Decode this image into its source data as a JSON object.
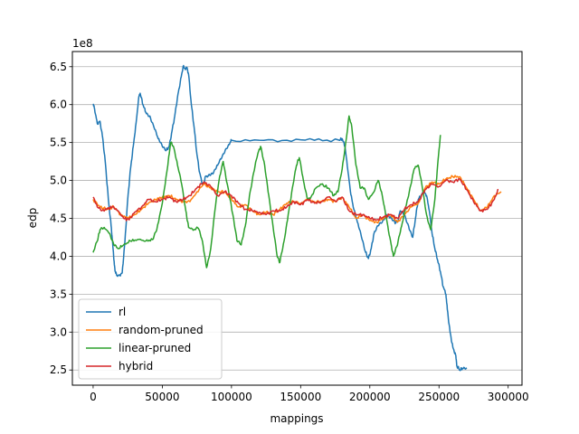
{
  "chart_data": {
    "type": "line",
    "title": "",
    "xlabel": "mappings",
    "ylabel": "edp",
    "y_scale_note": "1e8",
    "xlim": [
      -15000,
      310000
    ],
    "ylim": [
      2.3,
      6.7
    ],
    "x_ticks": [
      0,
      50000,
      100000,
      150000,
      200000,
      250000,
      300000
    ],
    "x_tick_labels": [
      "0",
      "50000",
      "100000",
      "150000",
      "200000",
      "250000",
      "300000"
    ],
    "y_ticks": [
      2.5,
      3.0,
      3.5,
      4.0,
      4.5,
      5.0,
      5.5,
      6.0,
      6.5
    ],
    "y_tick_labels": [
      "2.5",
      "3.0",
      "3.5",
      "4.0",
      "4.5",
      "5.0",
      "5.5",
      "6.0",
      "6.5"
    ],
    "grid": "horizontal",
    "legend_position": "lower-left",
    "series": [
      {
        "name": "rl",
        "color": "#1f77b4",
        "points": [
          [
            0,
            6.0
          ],
          [
            1000,
            5.95
          ],
          [
            3000,
            5.75
          ],
          [
            5000,
            5.78
          ],
          [
            7000,
            5.55
          ],
          [
            9000,
            5.2
          ],
          [
            11000,
            4.75
          ],
          [
            13000,
            4.4
          ],
          [
            14000,
            4.2
          ],
          [
            15000,
            3.95
          ],
          [
            16000,
            3.8
          ],
          [
            17000,
            3.75
          ],
          [
            19000,
            3.75
          ],
          [
            21000,
            3.78
          ],
          [
            23000,
            4.2
          ],
          [
            25000,
            4.75
          ],
          [
            27000,
            5.15
          ],
          [
            29000,
            5.45
          ],
          [
            31000,
            5.75
          ],
          [
            33000,
            6.1
          ],
          [
            34000,
            6.15
          ],
          [
            36000,
            6.0
          ],
          [
            38000,
            5.9
          ],
          [
            41000,
            5.85
          ],
          [
            44000,
            5.7
          ],
          [
            47000,
            5.55
          ],
          [
            50000,
            5.45
          ],
          [
            53000,
            5.4
          ],
          [
            55000,
            5.45
          ],
          [
            57000,
            5.65
          ],
          [
            59000,
            5.85
          ],
          [
            61000,
            6.1
          ],
          [
            63000,
            6.3
          ],
          [
            65000,
            6.5
          ],
          [
            67000,
            6.47
          ],
          [
            68000,
            6.48
          ],
          [
            69000,
            6.4
          ],
          [
            71000,
            6.0
          ],
          [
            73000,
            5.7
          ],
          [
            75000,
            5.35
          ],
          [
            77000,
            5.1
          ],
          [
            79000,
            4.95
          ],
          [
            80000,
            4.95
          ],
          [
            81000,
            5.05
          ],
          [
            84000,
            5.08
          ],
          [
            87000,
            5.1
          ],
          [
            90000,
            5.2
          ],
          [
            93000,
            5.3
          ],
          [
            96000,
            5.42
          ],
          [
            99000,
            5.5
          ],
          [
            100000,
            5.53
          ],
          [
            120000,
            5.53
          ],
          [
            140000,
            5.53
          ],
          [
            160000,
            5.53
          ],
          [
            178000,
            5.53
          ],
          [
            180000,
            5.55
          ],
          [
            182000,
            5.45
          ],
          [
            184000,
            5.15
          ],
          [
            186000,
            4.85
          ],
          [
            188000,
            4.65
          ],
          [
            191000,
            4.45
          ],
          [
            194000,
            4.25
          ],
          [
            197000,
            4.05
          ],
          [
            199000,
            3.97
          ],
          [
            201000,
            4.1
          ],
          [
            203000,
            4.3
          ],
          [
            206000,
            4.4
          ],
          [
            209000,
            4.45
          ],
          [
            212000,
            4.55
          ],
          [
            215000,
            4.52
          ],
          [
            218000,
            4.45
          ],
          [
            220000,
            4.45
          ],
          [
            222000,
            4.6
          ],
          [
            225000,
            4.55
          ],
          [
            228000,
            4.4
          ],
          [
            231000,
            4.25
          ],
          [
            233000,
            4.5
          ],
          [
            235000,
            4.75
          ],
          [
            237000,
            4.8
          ],
          [
            239000,
            4.85
          ],
          [
            241000,
            4.8
          ],
          [
            243000,
            4.6
          ],
          [
            245000,
            4.3
          ],
          [
            247000,
            4.1
          ],
          [
            249000,
            3.95
          ],
          [
            251000,
            3.8
          ],
          [
            253000,
            3.6
          ],
          [
            255000,
            3.5
          ],
          [
            256000,
            3.3
          ],
          [
            258000,
            3.0
          ],
          [
            260000,
            2.8
          ],
          [
            262000,
            2.7
          ],
          [
            263000,
            2.55
          ],
          [
            265000,
            2.5
          ],
          [
            267000,
            2.52
          ],
          [
            270000,
            2.53
          ]
        ]
      },
      {
        "name": "random-pruned",
        "color": "#ff7f0e",
        "points": [
          [
            0,
            4.75
          ],
          [
            5000,
            4.65
          ],
          [
            10000,
            4.62
          ],
          [
            15000,
            4.65
          ],
          [
            20000,
            4.55
          ],
          [
            25000,
            4.5
          ],
          [
            30000,
            4.55
          ],
          [
            35000,
            4.62
          ],
          [
            40000,
            4.7
          ],
          [
            45000,
            4.75
          ],
          [
            50000,
            4.78
          ],
          [
            55000,
            4.8
          ],
          [
            60000,
            4.75
          ],
          [
            65000,
            4.72
          ],
          [
            70000,
            4.72
          ],
          [
            75000,
            4.85
          ],
          [
            80000,
            4.95
          ],
          [
            85000,
            4.9
          ],
          [
            90000,
            4.85
          ],
          [
            95000,
            4.85
          ],
          [
            100000,
            4.75
          ],
          [
            105000,
            4.65
          ],
          [
            110000,
            4.68
          ],
          [
            115000,
            4.6
          ],
          [
            120000,
            4.55
          ],
          [
            125000,
            4.58
          ],
          [
            130000,
            4.55
          ],
          [
            135000,
            4.62
          ],
          [
            140000,
            4.7
          ],
          [
            145000,
            4.72
          ],
          [
            150000,
            4.7
          ],
          [
            155000,
            4.75
          ],
          [
            160000,
            4.72
          ],
          [
            165000,
            4.72
          ],
          [
            170000,
            4.75
          ],
          [
            175000,
            4.72
          ],
          [
            180000,
            4.78
          ],
          [
            185000,
            4.65
          ],
          [
            190000,
            4.5
          ],
          [
            195000,
            4.55
          ],
          [
            200000,
            4.47
          ],
          [
            205000,
            4.45
          ],
          [
            210000,
            4.5
          ],
          [
            215000,
            4.55
          ],
          [
            220000,
            4.45
          ],
          [
            225000,
            4.55
          ],
          [
            230000,
            4.65
          ],
          [
            235000,
            4.7
          ],
          [
            240000,
            4.9
          ],
          [
            245000,
            4.98
          ],
          [
            250000,
            4.95
          ],
          [
            255000,
            5.02
          ],
          [
            260000,
            5.05
          ],
          [
            265000,
            5.05
          ],
          [
            270000,
            4.9
          ],
          [
            275000,
            4.75
          ],
          [
            280000,
            4.6
          ],
          [
            285000,
            4.65
          ],
          [
            290000,
            4.8
          ],
          [
            295000,
            4.85
          ]
        ]
      },
      {
        "name": "linear-pruned",
        "color": "#2ca02c",
        "points": [
          [
            0,
            4.05
          ],
          [
            3000,
            4.2
          ],
          [
            5000,
            4.35
          ],
          [
            8000,
            4.38
          ],
          [
            12000,
            4.3
          ],
          [
            15000,
            4.15
          ],
          [
            18000,
            4.1
          ],
          [
            22000,
            4.15
          ],
          [
            27000,
            4.2
          ],
          [
            32000,
            4.22
          ],
          [
            38000,
            4.2
          ],
          [
            43000,
            4.22
          ],
          [
            46000,
            4.35
          ],
          [
            50000,
            4.7
          ],
          [
            54000,
            5.2
          ],
          [
            56000,
            5.5
          ],
          [
            58000,
            5.45
          ],
          [
            61000,
            5.2
          ],
          [
            64000,
            4.95
          ],
          [
            67000,
            4.6
          ],
          [
            69000,
            4.38
          ],
          [
            73000,
            4.35
          ],
          [
            76000,
            4.37
          ],
          [
            79000,
            4.2
          ],
          [
            82000,
            3.85
          ],
          [
            85000,
            4.1
          ],
          [
            88000,
            4.6
          ],
          [
            91000,
            5.0
          ],
          [
            94000,
            5.25
          ],
          [
            97000,
            4.95
          ],
          [
            101000,
            4.55
          ],
          [
            104000,
            4.2
          ],
          [
            107000,
            4.15
          ],
          [
            110000,
            4.4
          ],
          [
            113000,
            4.8
          ],
          [
            116000,
            5.1
          ],
          [
            119000,
            5.35
          ],
          [
            121000,
            5.45
          ],
          [
            124000,
            5.2
          ],
          [
            127000,
            4.8
          ],
          [
            130000,
            4.4
          ],
          [
            133000,
            4.0
          ],
          [
            135000,
            3.92
          ],
          [
            138000,
            4.2
          ],
          [
            141000,
            4.55
          ],
          [
            144000,
            4.9
          ],
          [
            147000,
            5.2
          ],
          [
            149000,
            5.3
          ],
          [
            152000,
            5.0
          ],
          [
            155000,
            4.75
          ],
          [
            158000,
            4.8
          ],
          [
            161000,
            4.9
          ],
          [
            165000,
            4.95
          ],
          [
            170000,
            4.9
          ],
          [
            174000,
            4.8
          ],
          [
            177000,
            4.85
          ],
          [
            180000,
            5.15
          ],
          [
            183000,
            5.55
          ],
          [
            185000,
            5.85
          ],
          [
            187000,
            5.7
          ],
          [
            190000,
            5.2
          ],
          [
            193000,
            4.9
          ],
          [
            196000,
            4.9
          ],
          [
            199000,
            4.75
          ],
          [
            203000,
            4.85
          ],
          [
            206000,
            5.0
          ],
          [
            209000,
            4.8
          ],
          [
            212000,
            4.5
          ],
          [
            215000,
            4.2
          ],
          [
            217000,
            4.0
          ],
          [
            220000,
            4.15
          ],
          [
            223000,
            4.4
          ],
          [
            226000,
            4.65
          ],
          [
            229000,
            4.9
          ],
          [
            232000,
            5.15
          ],
          [
            235000,
            5.2
          ],
          [
            238000,
            4.9
          ],
          [
            241000,
            4.55
          ],
          [
            244000,
            4.35
          ],
          [
            247000,
            4.75
          ],
          [
            249000,
            5.2
          ],
          [
            251000,
            5.6
          ]
        ]
      },
      {
        "name": "hybrid",
        "color": "#d62728",
        "points": [
          [
            0,
            4.78
          ],
          [
            3000,
            4.65
          ],
          [
            6000,
            4.6
          ],
          [
            10000,
            4.62
          ],
          [
            14000,
            4.65
          ],
          [
            18000,
            4.6
          ],
          [
            22000,
            4.5
          ],
          [
            26000,
            4.48
          ],
          [
            30000,
            4.58
          ],
          [
            35000,
            4.65
          ],
          [
            40000,
            4.75
          ],
          [
            45000,
            4.72
          ],
          [
            50000,
            4.75
          ],
          [
            55000,
            4.78
          ],
          [
            60000,
            4.72
          ],
          [
            65000,
            4.75
          ],
          [
            70000,
            4.8
          ],
          [
            75000,
            4.9
          ],
          [
            80000,
            4.98
          ],
          [
            85000,
            4.92
          ],
          [
            90000,
            4.8
          ],
          [
            95000,
            4.85
          ],
          [
            100000,
            4.8
          ],
          [
            105000,
            4.7
          ],
          [
            110000,
            4.62
          ],
          [
            115000,
            4.6
          ],
          [
            120000,
            4.58
          ],
          [
            125000,
            4.55
          ],
          [
            130000,
            4.6
          ],
          [
            135000,
            4.6
          ],
          [
            140000,
            4.65
          ],
          [
            145000,
            4.72
          ],
          [
            150000,
            4.68
          ],
          [
            155000,
            4.75
          ],
          [
            160000,
            4.7
          ],
          [
            165000,
            4.72
          ],
          [
            170000,
            4.78
          ],
          [
            175000,
            4.73
          ],
          [
            180000,
            4.78
          ],
          [
            185000,
            4.6
          ],
          [
            190000,
            4.55
          ],
          [
            195000,
            4.55
          ],
          [
            200000,
            4.5
          ],
          [
            205000,
            4.48
          ],
          [
            210000,
            4.52
          ],
          [
            215000,
            4.55
          ],
          [
            220000,
            4.5
          ],
          [
            225000,
            4.62
          ],
          [
            230000,
            4.68
          ],
          [
            235000,
            4.72
          ],
          [
            240000,
            4.88
          ],
          [
            245000,
            4.95
          ],
          [
            250000,
            4.92
          ],
          [
            255000,
            5.0
          ],
          [
            260000,
            4.98
          ],
          [
            265000,
            5.02
          ],
          [
            270000,
            4.88
          ],
          [
            275000,
            4.72
          ],
          [
            280000,
            4.6
          ],
          [
            285000,
            4.62
          ],
          [
            290000,
            4.75
          ],
          [
            293000,
            4.88
          ]
        ]
      }
    ]
  }
}
